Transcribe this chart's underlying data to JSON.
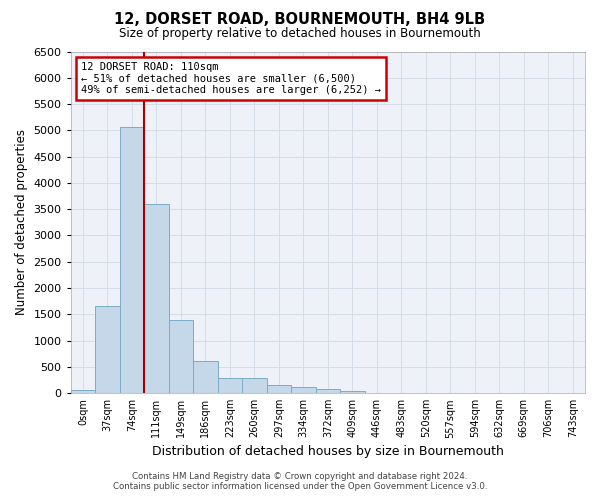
{
  "title": "12, DORSET ROAD, BOURNEMOUTH, BH4 9LB",
  "subtitle": "Size of property relative to detached houses in Bournemouth",
  "xlabel": "Distribution of detached houses by size in Bournemouth",
  "ylabel": "Number of detached properties",
  "bar_labels": [
    "0sqm",
    "37sqm",
    "74sqm",
    "111sqm",
    "149sqm",
    "186sqm",
    "223sqm",
    "260sqm",
    "297sqm",
    "334sqm",
    "372sqm",
    "409sqm",
    "446sqm",
    "483sqm",
    "520sqm",
    "557sqm",
    "594sqm",
    "632sqm",
    "669sqm",
    "706sqm",
    "743sqm"
  ],
  "bar_values": [
    70,
    1650,
    5060,
    3590,
    1390,
    610,
    295,
    290,
    150,
    115,
    80,
    50,
    0,
    0,
    0,
    0,
    0,
    0,
    0,
    0,
    0
  ],
  "bar_color": "#c5d8ea",
  "bar_edgecolor": "#7aacc8",
  "grid_color": "#d0d8e4",
  "background_color": "#eef2f8",
  "ylim": [
    0,
    6500
  ],
  "yticks": [
    0,
    500,
    1000,
    1500,
    2000,
    2500,
    3000,
    3500,
    4000,
    4500,
    5000,
    5500,
    6000,
    6500
  ],
  "property_line_x": 2,
  "property_line_color": "#aa0000",
  "annotation_text": "12 DORSET ROAD: 110sqm\n← 51% of detached houses are smaller (6,500)\n49% of semi-detached houses are larger (6,252) →",
  "annotation_box_color": "#ffffff",
  "annotation_box_edgecolor": "#cc0000",
  "footer_line1": "Contains HM Land Registry data © Crown copyright and database right 2024.",
  "footer_line2": "Contains public sector information licensed under the Open Government Licence v3.0.",
  "n_bars": 21
}
